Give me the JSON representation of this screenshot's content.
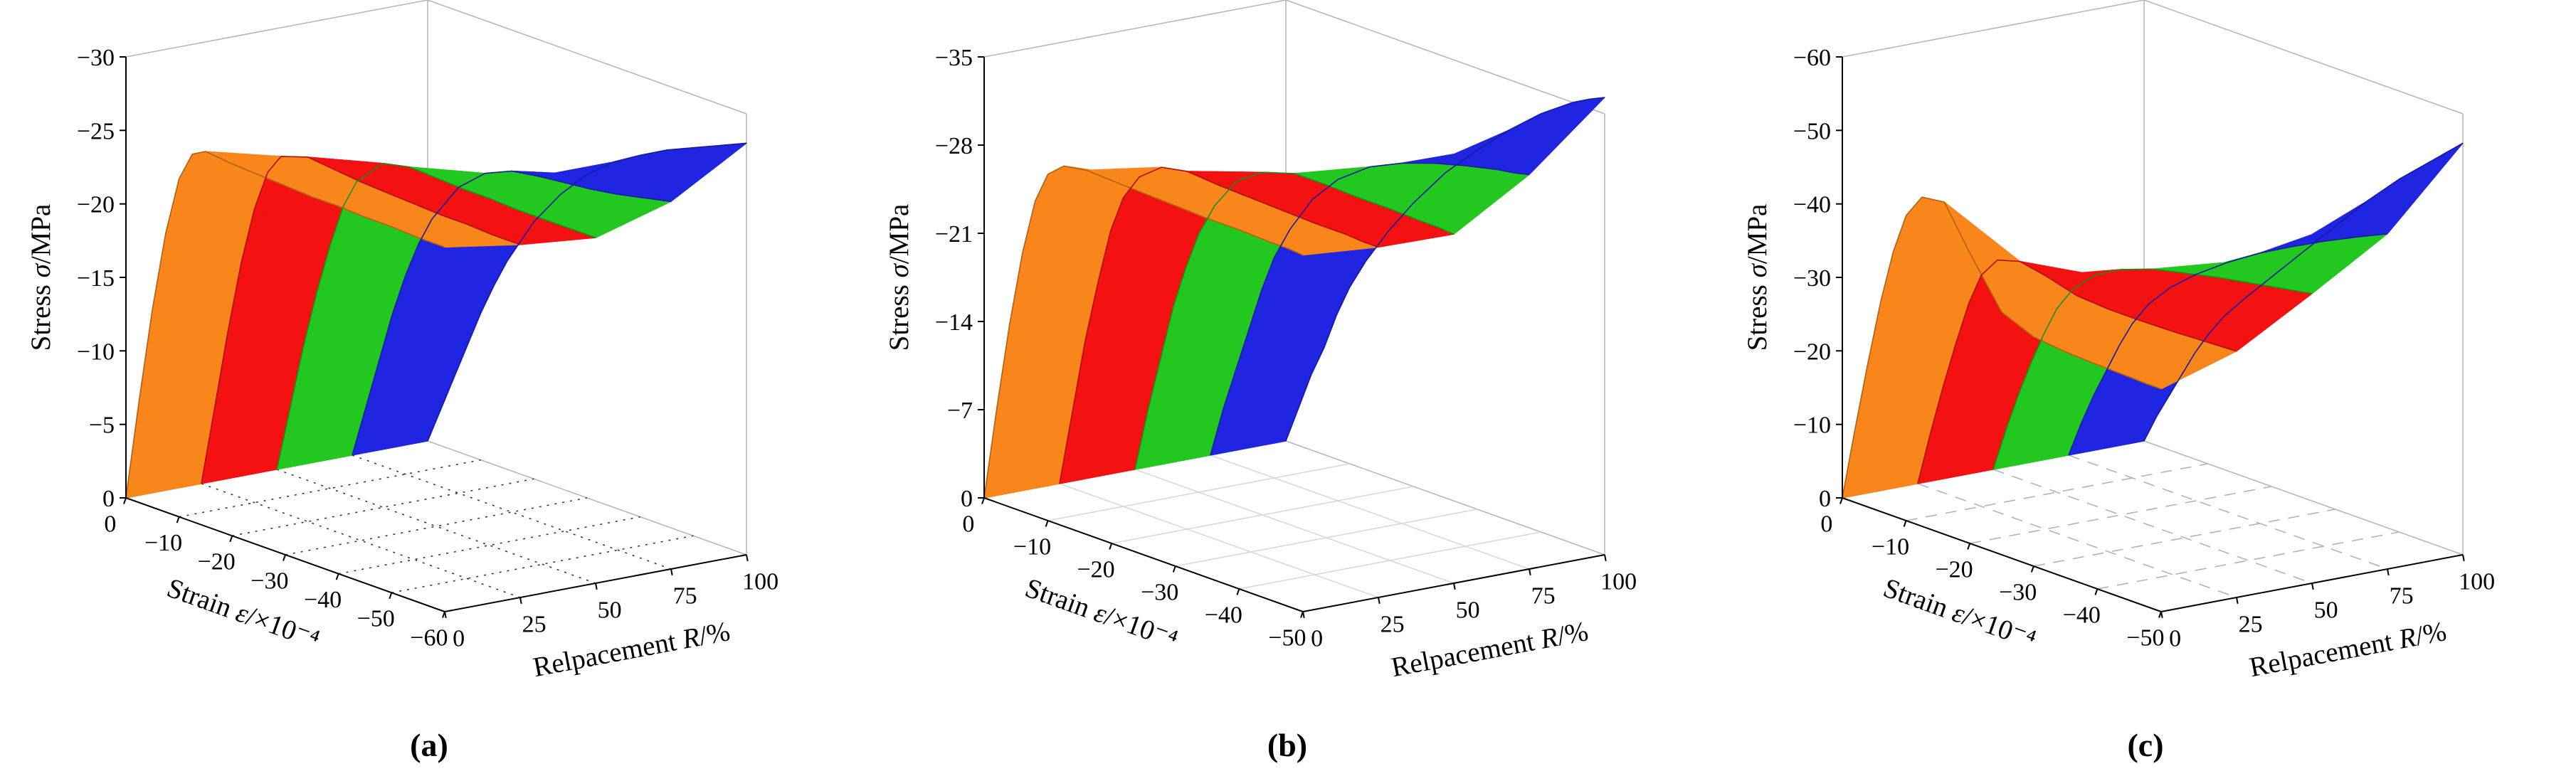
{
  "figure": {
    "background": "#ffffff",
    "description_visible_text_only": true
  },
  "chart_data": [
    {
      "type": "surface3d",
      "caption": "(a)",
      "zlabel": {
        "pre": "Stress ",
        "var": "σ",
        "post": "/MPa"
      },
      "xlabel": {
        "pre": "Strain ",
        "var": "ε",
        "post": "/×10⁻⁴"
      },
      "ylabel": {
        "pre": "Relpacement ",
        "var": "R",
        "post": "/%"
      },
      "zlim": [
        0,
        -30
      ],
      "xlim": [
        0,
        -60
      ],
      "ylim": [
        0,
        100
      ],
      "stress_ticks": [
        0,
        -5,
        -10,
        -15,
        -20,
        -25,
        -30
      ],
      "strain_ticks": [
        0,
        -10,
        -20,
        -30,
        -40,
        -50,
        -60
      ],
      "replacement_ticks": [
        0,
        25,
        50,
        75,
        100
      ],
      "grid": {
        "style": "dotted",
        "color": "#3a3a3a"
      },
      "strain_samples": [
        0,
        -2.5,
        -5,
        -7.5,
        -10,
        -12.5,
        -15,
        -20,
        -25,
        -30,
        -35,
        -40,
        -45,
        -50,
        -55,
        -60
      ],
      "bands": [
        {
          "name": "R = 0–25%",
          "color": "#f8861a"
        },
        {
          "name": "R = 25–50%",
          "color": "#f31111"
        },
        {
          "name": "R = 50–75%",
          "color": "#22c81f"
        },
        {
          "name": "R = 75–100%",
          "color": "#1f25e0"
        }
      ],
      "boundary_curves": [
        {
          "replacement": 0,
          "stress": [
            0,
            -7,
            -13.5,
            -19,
            -23,
            -25,
            -25.5,
            -25.3,
            -25.2,
            -25.1,
            -25,
            -25,
            -24.9,
            -24.9,
            -24.8,
            -24.8
          ]
        },
        {
          "replacement": 25,
          "stress": [
            0,
            -5.5,
            -11,
            -16,
            -20,
            -22.8,
            -24.2,
            -24.8,
            -24.6,
            -24.4,
            -24.3,
            -24.2,
            -24.1,
            -24.1,
            -24,
            -24
          ]
        },
        {
          "replacement": 50,
          "stress": [
            0,
            -4.5,
            -9,
            -13,
            -16.5,
            -19.5,
            -21.5,
            -23.4,
            -23.8,
            -23.7,
            -23.6,
            -23.6,
            -23.5,
            -23.5,
            -23.5,
            -23.5
          ]
        },
        {
          "replacement": 75,
          "stress": [
            0,
            -3.5,
            -7,
            -10.5,
            -13.5,
            -16,
            -18,
            -20.8,
            -22.4,
            -23.2,
            -23.5,
            -23.7,
            -23.9,
            -24.2,
            -24.6,
            -25
          ]
        },
        {
          "replacement": 100,
          "stress": [
            0,
            -2.5,
            -5,
            -7.5,
            -10,
            -12.2,
            -14.2,
            -17.5,
            -20,
            -22,
            -23.5,
            -24.6,
            -25.6,
            -26.4,
            -27.2,
            -28
          ]
        }
      ]
    },
    {
      "type": "surface3d",
      "caption": "(b)",
      "zlabel": {
        "pre": "Stress ",
        "var": "σ",
        "post": "/MPa"
      },
      "xlabel": {
        "pre": "Strain ",
        "var": "ε",
        "post": "/×10⁻⁴"
      },
      "ylabel": {
        "pre": "Relpacement ",
        "var": "R",
        "post": "/%"
      },
      "zlim": [
        0,
        -35
      ],
      "xlim": [
        0,
        -50
      ],
      "ylim": [
        0,
        100
      ],
      "stress_ticks": [
        0,
        -7,
        -14,
        -21,
        -28,
        -35
      ],
      "strain_ticks": [
        0,
        -10,
        -20,
        -30,
        -40,
        -50
      ],
      "replacement_ticks": [
        0,
        25,
        50,
        75,
        100
      ],
      "grid": {
        "style": "solid",
        "color": "#d9d9d9"
      },
      "strain_samples": [
        0,
        -2,
        -4,
        -6,
        -8,
        -10,
        -12.5,
        -16,
        -20,
        -25,
        -30,
        -35,
        -40,
        -45,
        -47.5,
        -50
      ],
      "bands": [
        {
          "name": "R = 0–25%",
          "color": "#f8861a"
        },
        {
          "name": "R = 25–50%",
          "color": "#f31111"
        },
        {
          "name": "R = 50–75%",
          "color": "#22c81f"
        },
        {
          "name": "R = 75–100%",
          "color": "#1f25e0"
        }
      ],
      "boundary_curves": [
        {
          "replacement": 0,
          "stress": [
            0,
            -7.5,
            -14.5,
            -20.5,
            -25,
            -27.5,
            -28.6,
            -28.9,
            -28.8,
            -28.7,
            -28.6,
            -28.5,
            -28.5,
            -28.4,
            -28.4,
            -28.3
          ]
        },
        {
          "replacement": 25,
          "stress": [
            0,
            -6,
            -12,
            -17,
            -21.5,
            -24.5,
            -26.6,
            -28,
            -28.4,
            -28.2,
            -28.1,
            -28,
            -27.9,
            -27.9,
            -27.8,
            -27.8
          ]
        },
        {
          "replacement": 50,
          "stress": [
            0,
            -5,
            -9.5,
            -14,
            -17.5,
            -20.5,
            -23.2,
            -25.8,
            -27.2,
            -28,
            -28,
            -27.9,
            -27.9,
            -27.8,
            -27.8,
            -27.7
          ]
        },
        {
          "replacement": 75,
          "stress": [
            0,
            -4,
            -7.5,
            -11,
            -14.5,
            -17.5,
            -20.2,
            -23.2,
            -25.5,
            -27.4,
            -28.6,
            -29.5,
            -30.2,
            -30.8,
            -31,
            -31.3
          ]
        },
        {
          "replacement": 100,
          "stress": [
            0,
            -3,
            -6,
            -8.5,
            -11.5,
            -14,
            -16.5,
            -19.5,
            -22.5,
            -25.8,
            -28.5,
            -31,
            -33.2,
            -35,
            -35.7,
            -36.3
          ]
        }
      ]
    },
    {
      "type": "surface3d",
      "caption": "(c)",
      "zlabel": {
        "pre": "Stress ",
        "var": "σ",
        "post": "/MPa"
      },
      "xlabel": {
        "pre": "Strain ",
        "var": "ε",
        "post": "/×10⁻⁴"
      },
      "ylabel": {
        "pre": "Relpacement ",
        "var": "R",
        "post": "/%"
      },
      "zlim": [
        0,
        -60
      ],
      "xlim": [
        0,
        -50
      ],
      "ylim": [
        0,
        100
      ],
      "stress_ticks": [
        0,
        -10,
        -20,
        -30,
        -40,
        -50,
        -60
      ],
      "strain_ticks": [
        0,
        -10,
        -20,
        -30,
        -40,
        -50
      ],
      "replacement_ticks": [
        0,
        25,
        50,
        75,
        100
      ],
      "grid": {
        "style": "dashed",
        "color": "#b3b3b3"
      },
      "strain_samples": [
        0,
        -2,
        -4,
        -6,
        -8,
        -10,
        -12.5,
        -16,
        -20,
        -25,
        -30,
        -35,
        -40,
        -45,
        -47.5,
        -50
      ],
      "bands": [
        {
          "name": "R = 0–25%",
          "color": "#f8861a"
        },
        {
          "name": "R = 25–50%",
          "color": "#f31111"
        },
        {
          "name": "R = 50–75%",
          "color": "#22c81f"
        },
        {
          "name": "R = 75–100%",
          "color": "#1f25e0"
        }
      ],
      "boundary_curves": [
        {
          "replacement": 0,
          "stress": [
            0,
            -10,
            -19.5,
            -28.5,
            -36,
            -41.5,
            -44.8,
            -45.2,
            -39.5,
            -33,
            -31.2,
            -30.7,
            -30.5,
            -30.4,
            -30.3,
            -30.3
          ]
        },
        {
          "replacement": 25,
          "stress": [
            0,
            -7.5,
            -14.5,
            -21,
            -27,
            -31.5,
            -34.3,
            -35.2,
            -34.5,
            -33.3,
            -33,
            -33,
            -33.1,
            -33.3,
            -33.4,
            -33.5
          ]
        },
        {
          "replacement": 50,
          "stress": [
            0,
            -6,
            -11.5,
            -16.5,
            -21,
            -25,
            -28.4,
            -31.4,
            -33.4,
            -35,
            -36,
            -37,
            -37.8,
            -38.6,
            -39,
            -39.4
          ]
        },
        {
          "replacement": 75,
          "stress": [
            0,
            -5,
            -9.5,
            -13.5,
            -17.5,
            -21,
            -24.4,
            -27.8,
            -30.8,
            -34,
            -36.8,
            -39.2,
            -41.5,
            -43.6,
            -44.6,
            -45.6
          ]
        },
        {
          "replacement": 100,
          "stress": [
            0,
            -4,
            -7.5,
            -11,
            -14.5,
            -17.5,
            -20.8,
            -24.5,
            -28.5,
            -33.5,
            -38.5,
            -43.5,
            -48,
            -52,
            -54,
            -56
          ]
        }
      ]
    }
  ]
}
